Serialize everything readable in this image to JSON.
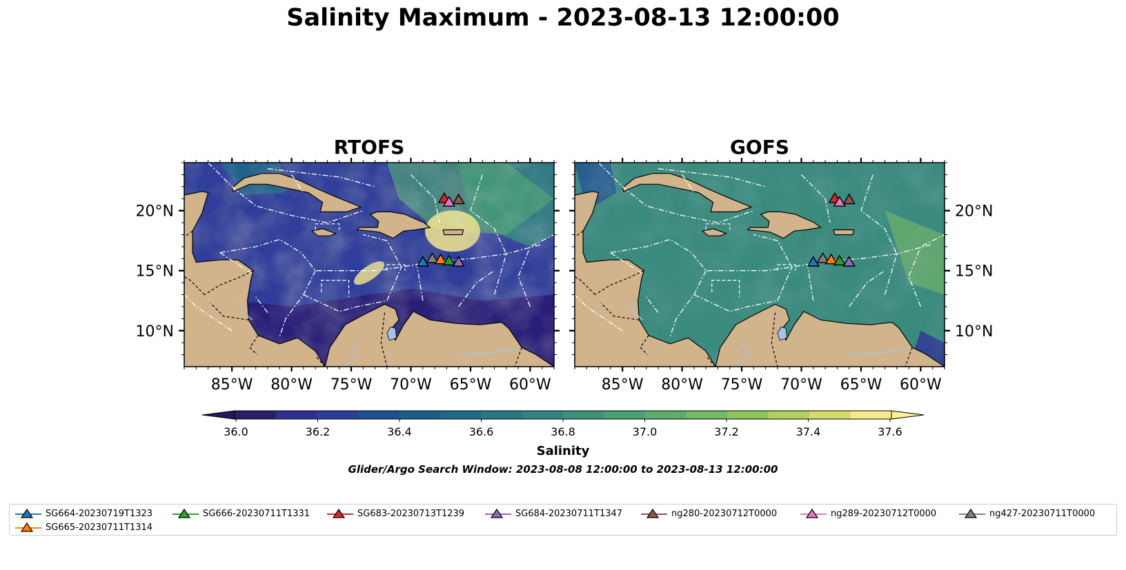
{
  "title": "Salinity Maximum - 2023-08-13 12:00:00",
  "panels": [
    {
      "title": "RTOFS",
      "x_ticks": [
        "85°W",
        "80°W",
        "75°W",
        "70°W",
        "65°W",
        "60°W"
      ],
      "y_ticks": [
        "20°N",
        "15°N",
        "10°N"
      ]
    },
    {
      "title": "GOFS",
      "x_ticks": [
        "85°W",
        "80°W",
        "75°W",
        "70°W",
        "65°W",
        "60°W"
      ],
      "y_ticks": [
        "20°N",
        "15°N",
        "10°N"
      ]
    }
  ],
  "colorbar": {
    "label": "Salinity",
    "ticks": [
      "36.0",
      "36.2",
      "36.4",
      "36.6",
      "36.8",
      "37.0",
      "37.2",
      "37.4",
      "37.6"
    ],
    "colors": [
      "#2b1e6b",
      "#2e2f95",
      "#2b3f9a",
      "#1f4f93",
      "#1b5d8d",
      "#1e6b88",
      "#2a7885",
      "#33867f",
      "#3d9379",
      "#4aa174",
      "#5cad6c",
      "#74b964",
      "#90c45c",
      "#b2d05c",
      "#d6dc6c",
      "#f7e98c"
    ]
  },
  "subtitle": "Glider/Argo Search Window: 2023-08-08 12:00:00 to 2023-08-13 12:00:00",
  "legend": [
    {
      "label": "SG664-20230719T1323",
      "color": "#1f77b4"
    },
    {
      "label": "SG665-20230711T1314",
      "color": "#ff7f0e"
    },
    {
      "label": "SG666-20230711T1331",
      "color": "#2ca02c"
    },
    {
      "label": "SG683-20230713T1239",
      "color": "#d62728"
    },
    {
      "label": "SG684-20230711T1347",
      "color": "#9467bd"
    },
    {
      "label": "ng280-20230712T0000",
      "color": "#8c564b"
    },
    {
      "label": "ng289-20230712T0000",
      "color": "#e377c2"
    },
    {
      "label": "ng427-20230711T0000",
      "color": "#7f7f7f"
    }
  ],
  "map": {
    "extent": {
      "lon": [
        -89,
        -58
      ],
      "lat": [
        7,
        24
      ]
    },
    "markers": [
      {
        "id": "SG664",
        "lon": -69.0,
        "lat": 15.7,
        "color": "#1f77b4"
      },
      {
        "id": "ng427",
        "lon": -68.2,
        "lat": 16.0,
        "color": "#7f7f7f"
      },
      {
        "id": "SG665",
        "lon": -67.5,
        "lat": 15.9,
        "color": "#ff7f0e"
      },
      {
        "id": "SG666",
        "lon": -66.8,
        "lat": 15.8,
        "color": "#2ca02c"
      },
      {
        "id": "SG684",
        "lon": -66.0,
        "lat": 15.7,
        "color": "#9467bd"
      },
      {
        "id": "SG683",
        "lon": -67.2,
        "lat": 21.0,
        "color": "#d62728"
      },
      {
        "id": "ng289",
        "lon": -66.8,
        "lat": 20.7,
        "color": "#e377c2"
      },
      {
        "id": "ng280",
        "lon": -66.0,
        "lat": 20.9,
        "color": "#8c564b"
      }
    ]
  }
}
